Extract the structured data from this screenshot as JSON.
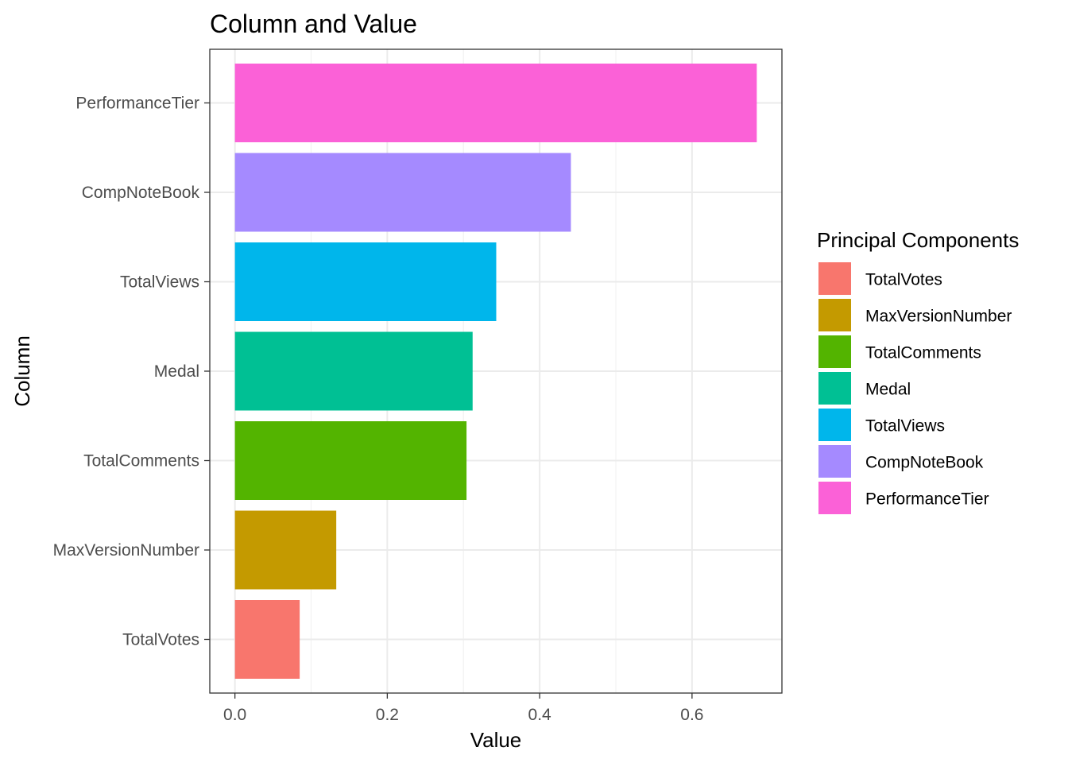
{
  "chart_data": {
    "type": "bar",
    "orientation": "horizontal",
    "title": "Column and Value",
    "xlabel": "Value",
    "ylabel": "Column",
    "xlim": [
      -0.033,
      0.718
    ],
    "x_ticks": [
      "0.0",
      "0.2",
      "0.4",
      "0.6"
    ],
    "grid": true,
    "legend_position": "right",
    "legend_title": "Principal Components",
    "categories": [
      "TotalVotes",
      "MaxVersionNumber",
      "TotalComments",
      "Medal",
      "TotalViews",
      "CompNoteBook",
      "PerformanceTier"
    ],
    "values": [
      0.085,
      0.133,
      0.304,
      0.312,
      0.343,
      0.441,
      0.685
    ],
    "colors": [
      "#F8766D",
      "#C49A00",
      "#53B400",
      "#00C094",
      "#00B6EB",
      "#A58AFF",
      "#FB61D7"
    ]
  }
}
